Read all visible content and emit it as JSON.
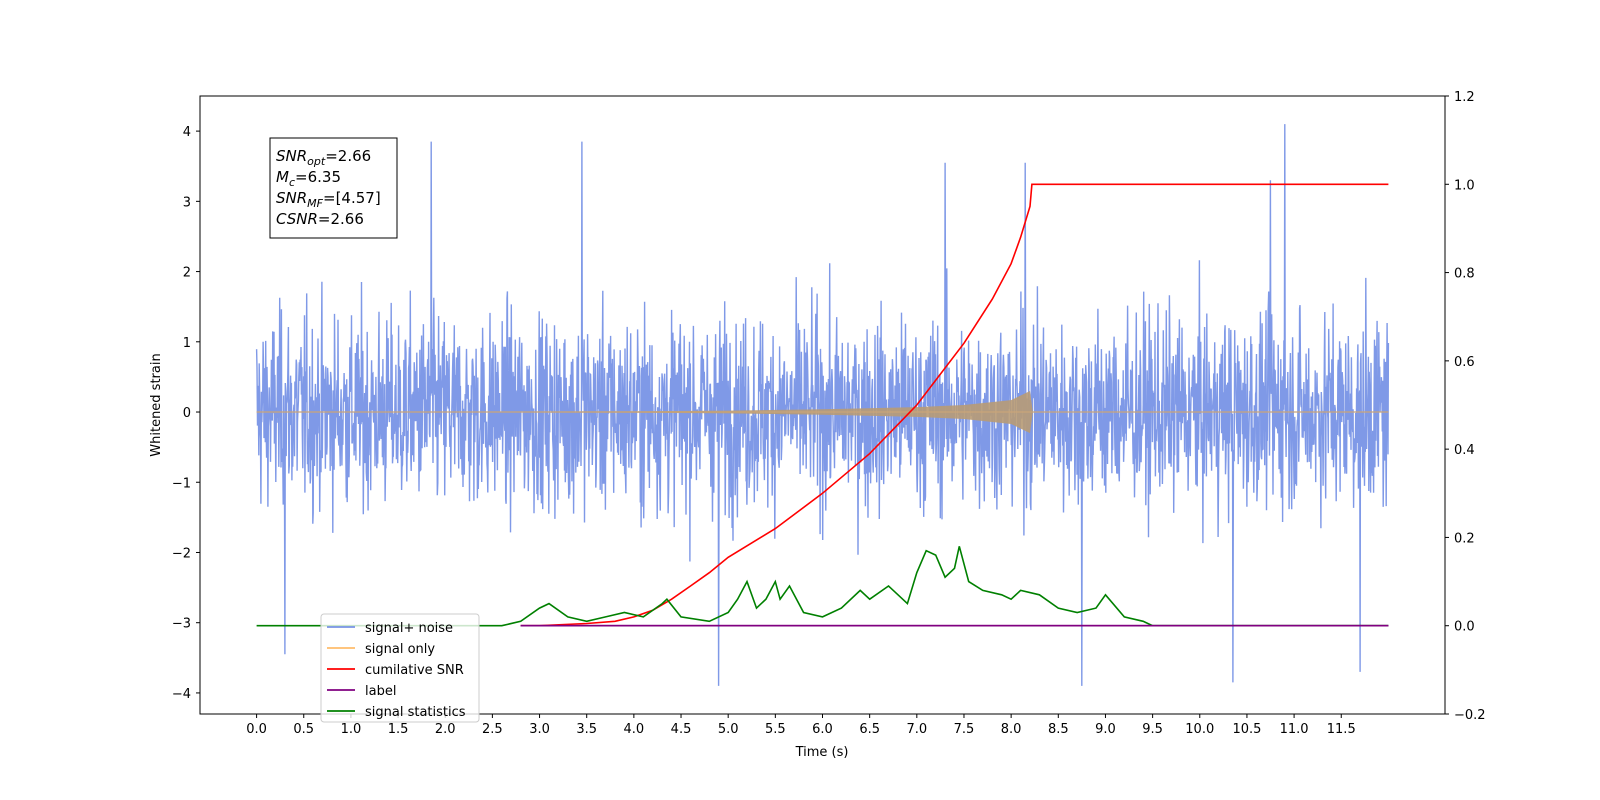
{
  "chart_data": {
    "type": "line",
    "xlabel": "Time (s)",
    "ylabel": "Whitened strain",
    "xlim": [
      -0.6,
      12.6
    ],
    "ylim": [
      -4.3,
      4.5
    ],
    "ylim_right": [
      -0.2,
      1.2
    ],
    "x_ticks": [
      "0.0",
      "0.5",
      "1.0",
      "1.5",
      "2.0",
      "2.5",
      "3.0",
      "3.5",
      "4.0",
      "4.5",
      "5.0",
      "5.5",
      "6.0",
      "6.5",
      "7.0",
      "7.5",
      "8.0",
      "8.5",
      "9.0",
      "9.5",
      "10.0",
      "10.5",
      "11.0",
      "11.5"
    ],
    "y_ticks_left": [
      "−4",
      "−3",
      "−2",
      "−1",
      "0",
      "1",
      "2",
      "3",
      "4"
    ],
    "y_ticks_right": [
      "−0.2",
      "0.0",
      "0.2",
      "0.4",
      "0.6",
      "0.8",
      "1.0",
      "1.2"
    ],
    "grid": false,
    "legend_position": "lower-left",
    "annotation": {
      "lines": [
        {
          "label": "SNR",
          "sub": "opt",
          "value": "=2.66"
        },
        {
          "label": "M",
          "sub": "c",
          "value": "=6.35"
        },
        {
          "label": "SNR",
          "sub": "MF",
          "value": "=[4.57]"
        },
        {
          "label": "CSNR",
          "sub": "",
          "value": "=2.66"
        }
      ]
    },
    "series": [
      {
        "name": "signal+ noise",
        "color": "#7893e6",
        "axis": "left",
        "x_range": [
          0.0,
          12.0
        ],
        "amplitude_typical": 2.5,
        "peak_points": [
          [
            1.85,
            3.85
          ],
          [
            3.45,
            3.85
          ],
          [
            10.9,
            4.1
          ],
          [
            7.3,
            3.55
          ],
          [
            8.15,
            3.55
          ],
          [
            10.75,
            3.3
          ],
          [
            0.3,
            -3.45
          ],
          [
            4.9,
            -3.9
          ],
          [
            8.75,
            -3.9
          ],
          [
            10.35,
            -3.85
          ],
          [
            11.7,
            -3.7
          ]
        ]
      },
      {
        "name": "signal only",
        "color": "#ffbd6b",
        "axis": "left",
        "x": [
          0.0,
          4.0,
          5.0,
          6.0,
          7.0,
          7.5,
          8.0,
          8.2,
          8.23,
          12.0
        ],
        "envelope": [
          0.0,
          0.01,
          0.02,
          0.04,
          0.07,
          0.1,
          0.17,
          0.3,
          0.0,
          0.0
        ]
      },
      {
        "name": "cumilative SNR",
        "color": "#ff0000",
        "axis": "right",
        "x": [
          2.8,
          3.0,
          3.5,
          3.8,
          4.0,
          4.2,
          4.4,
          4.6,
          4.8,
          5.0,
          5.5,
          6.0,
          6.5,
          7.0,
          7.5,
          7.8,
          8.0,
          8.1,
          8.2,
          8.22,
          12.0
        ],
        "y": [
          0.0,
          0.0,
          0.005,
          0.01,
          0.02,
          0.035,
          0.06,
          0.09,
          0.12,
          0.155,
          0.22,
          0.3,
          0.39,
          0.5,
          0.64,
          0.74,
          0.82,
          0.88,
          0.95,
          1.0,
          1.0
        ]
      },
      {
        "name": "label",
        "color": "#800080",
        "axis": "right",
        "x": [
          2.8,
          12.0
        ],
        "y": [
          0.0,
          0.0
        ]
      },
      {
        "name": "signal statistics",
        "color": "#008000",
        "axis": "right",
        "x": [
          0.0,
          2.6,
          2.8,
          3.0,
          3.1,
          3.3,
          3.5,
          3.7,
          3.9,
          4.1,
          4.3,
          4.35,
          4.5,
          4.8,
          5.0,
          5.1,
          5.2,
          5.3,
          5.4,
          5.5,
          5.55,
          5.65,
          5.8,
          6.0,
          6.2,
          6.4,
          6.5,
          6.7,
          6.9,
          7.0,
          7.1,
          7.2,
          7.3,
          7.4,
          7.45,
          7.55,
          7.7,
          7.9,
          8.0,
          8.1,
          8.3,
          8.5,
          8.7,
          8.9,
          9.0,
          9.2,
          9.4,
          9.5,
          12.0
        ],
        "y": [
          0.0,
          0.0,
          0.01,
          0.04,
          0.05,
          0.02,
          0.01,
          0.02,
          0.03,
          0.02,
          0.05,
          0.06,
          0.02,
          0.01,
          0.03,
          0.06,
          0.1,
          0.04,
          0.06,
          0.1,
          0.06,
          0.09,
          0.03,
          0.02,
          0.04,
          0.08,
          0.06,
          0.09,
          0.05,
          0.12,
          0.17,
          0.16,
          0.11,
          0.13,
          0.18,
          0.1,
          0.08,
          0.07,
          0.06,
          0.08,
          0.07,
          0.04,
          0.03,
          0.04,
          0.07,
          0.02,
          0.01,
          0.0,
          0.0
        ]
      }
    ]
  }
}
